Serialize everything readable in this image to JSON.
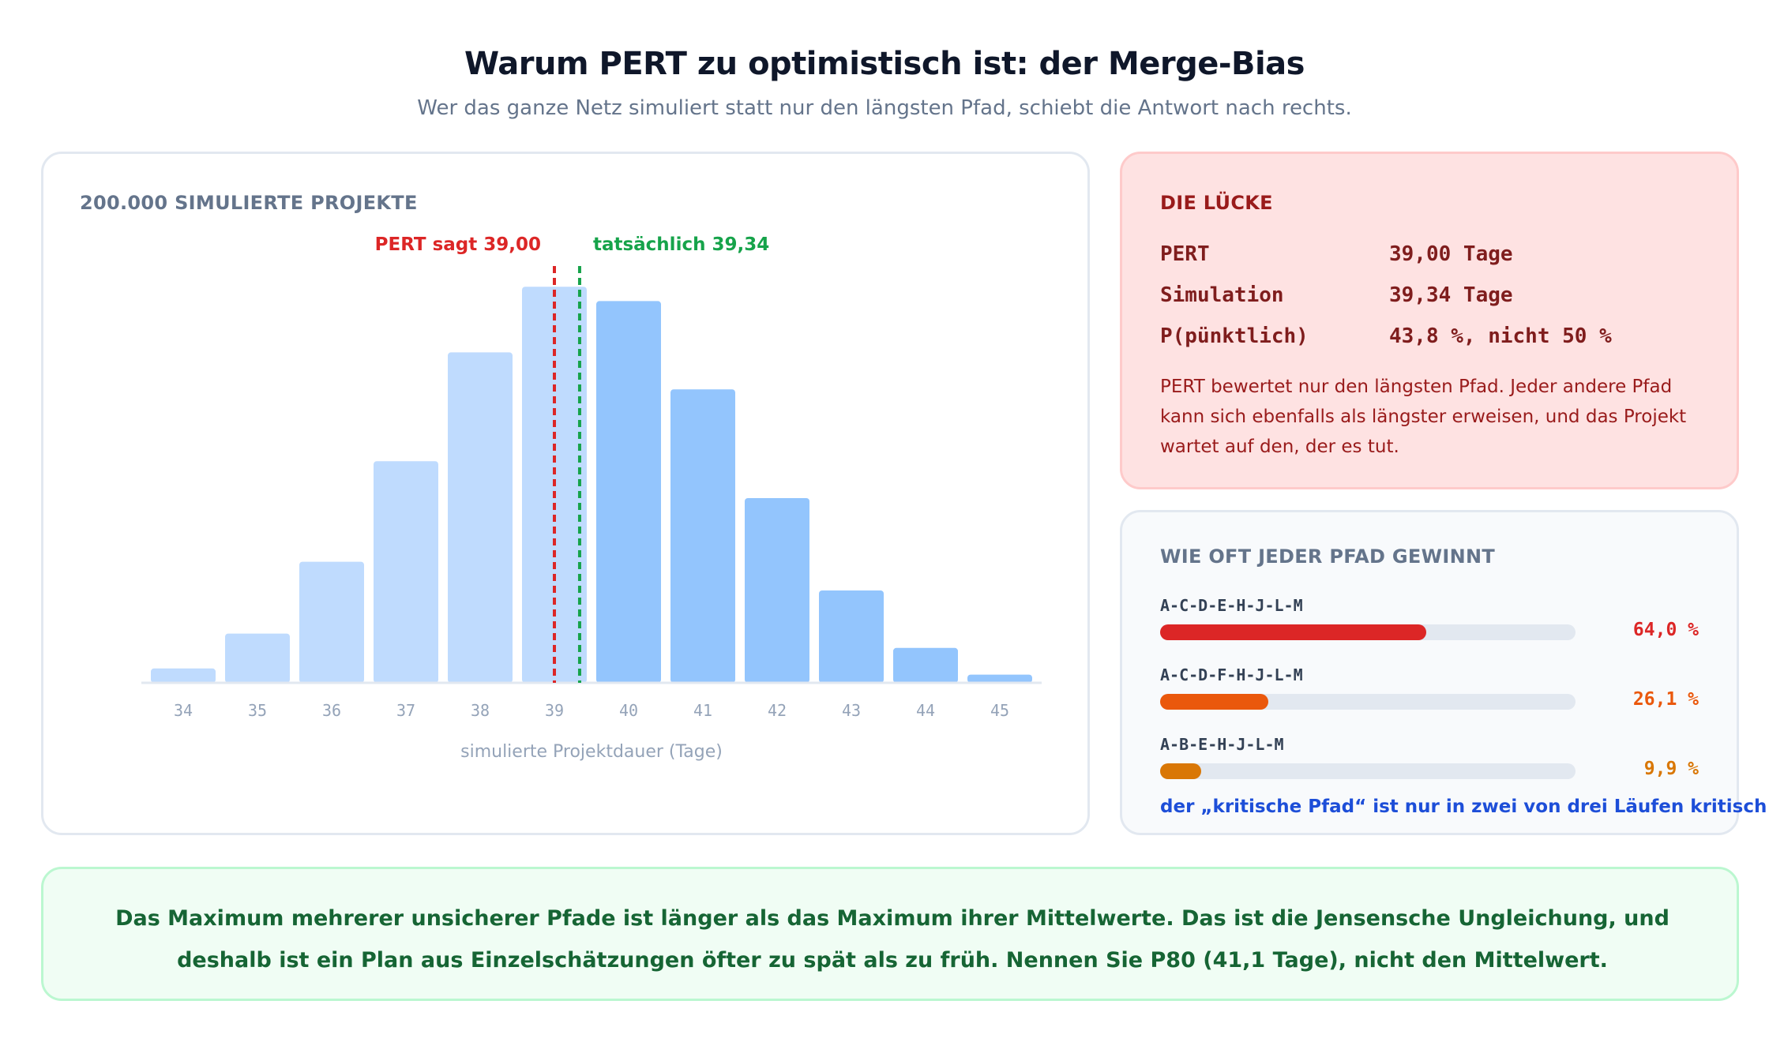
{
  "header": {
    "title": "Warum PERT zu optimistisch ist: der Merge-Bias",
    "subtitle": "Wer das ganze Netz simuliert statt nur den längsten Pfad, schiebt die Antwort nach rechts."
  },
  "chart_data": {
    "type": "bar",
    "title": "200.000 SIMULIERTE PROJEKTE",
    "xlabel": "simulierte Projektdauer (Tage)",
    "ylabel": "",
    "categories": [
      "34",
      "35",
      "36",
      "37",
      "38",
      "39",
      "40",
      "41",
      "42",
      "43",
      "44",
      "45"
    ],
    "values": [
      0.7,
      2.4,
      5.9,
      10.8,
      16.1,
      19.3,
      18.6,
      14.3,
      9.0,
      4.5,
      1.7,
      0.4
    ],
    "ylim": [
      0,
      20
    ],
    "grid": false,
    "colors": {
      "before": "#bfdbfe",
      "after": "#93c5fd",
      "baseline": "#e2e8f0"
    },
    "annotations": [
      {
        "x": 39.0,
        "label": "PERT sagt 39,00",
        "color": "#dc2626"
      },
      {
        "x": 39.34,
        "label": "tatsächlich 39,34",
        "color": "#16a34a"
      }
    ]
  },
  "gap": {
    "heading": "DIE LÜCKE",
    "rows": [
      {
        "label": "PERT",
        "value": "39,00 Tage"
      },
      {
        "label": "Simulation",
        "value": "39,34 Tage"
      },
      {
        "label": "P(pünktlich)",
        "value": "43,8 %, nicht 50 %"
      }
    ],
    "text": "PERT bewertet nur den längsten Pfad. Jeder andere Pfad kann sich ebenfalls als längster erweisen, und das Projekt wartet auf den, der es tut."
  },
  "paths": {
    "heading": "WIE OFT JEDER PFAD GEWINNT",
    "items": [
      {
        "label": "A-C-D-E-H-J-L-M",
        "share": 0.64,
        "value": "64,0 %",
        "color": "#dc2626"
      },
      {
        "label": "A-C-D-F-H-J-L-M",
        "share": 0.261,
        "value": "26,1 %",
        "color": "#ea580c"
      },
      {
        "label": "A-B-E-H-J-L-M",
        "share": 0.099,
        "value": "9,9 %",
        "color": "#d97706"
      }
    ],
    "footnote": "der „kritische Pfad“ ist nur in zwei von drei Läufen kritisch"
  },
  "note": {
    "text": "Das Maximum mehrerer unsicherer Pfade ist länger als das Maximum ihrer Mittelwerte. Das ist die Jensensche Ungleichung, und deshalb ist ein Plan aus Einzelschätzungen öfter zu spät als zu früh. Nennen Sie P80 (41,1 Tage), nicht den Mittelwert."
  }
}
